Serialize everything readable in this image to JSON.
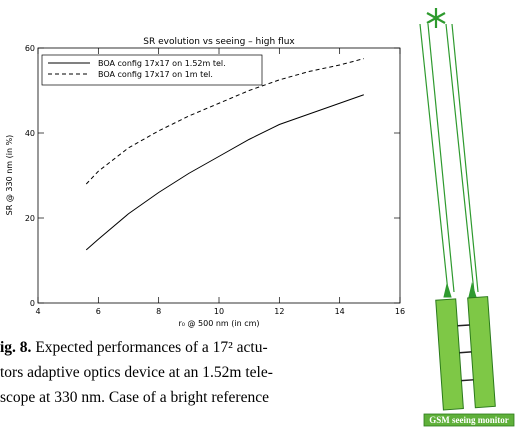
{
  "chart_data": {
    "type": "line",
    "title": "SR evolution vs seeing – high flux",
    "x_label": "r₀ @ 500 nm (in cm)",
    "y_label": "SR @ 330 nm (in %)",
    "x": [
      5.6,
      6,
      7,
      8,
      9,
      10,
      11,
      12,
      13,
      14,
      14.8
    ],
    "series": [
      {
        "name": "BOA config 17x17 on 1.52m tel.",
        "color": "#000000",
        "linestyle": "solid",
        "values": [
          12.5,
          15,
          21,
          26,
          30.5,
          34.5,
          38.5,
          42,
          44.5,
          47,
          49
        ]
      },
      {
        "name": "BOA config 17x17 on 1m tel.",
        "color": "#000000",
        "linestyle": "dashed",
        "values": [
          28,
          31,
          36.5,
          40.5,
          44,
          47,
          50,
          52.5,
          54.5,
          56,
          57.5
        ]
      }
    ],
    "xlim": [
      4,
      16
    ],
    "xticks": [
      4,
      6,
      8,
      10,
      12,
      14,
      16
    ],
    "ylim": [
      0,
      60
    ],
    "yticks": [
      0,
      20,
      40,
      60
    ],
    "grid": false,
    "legend": "upper left"
  },
  "caption": {
    "label": "ig. 8.",
    "lines": [
      " Expected performances of a 17² actu-",
      "tors adaptive optics device at an 1.52m tele-",
      "scope at 330 nm. Case of a bright reference"
    ]
  },
  "diagram": {
    "label": "GSM seeing monitor"
  }
}
